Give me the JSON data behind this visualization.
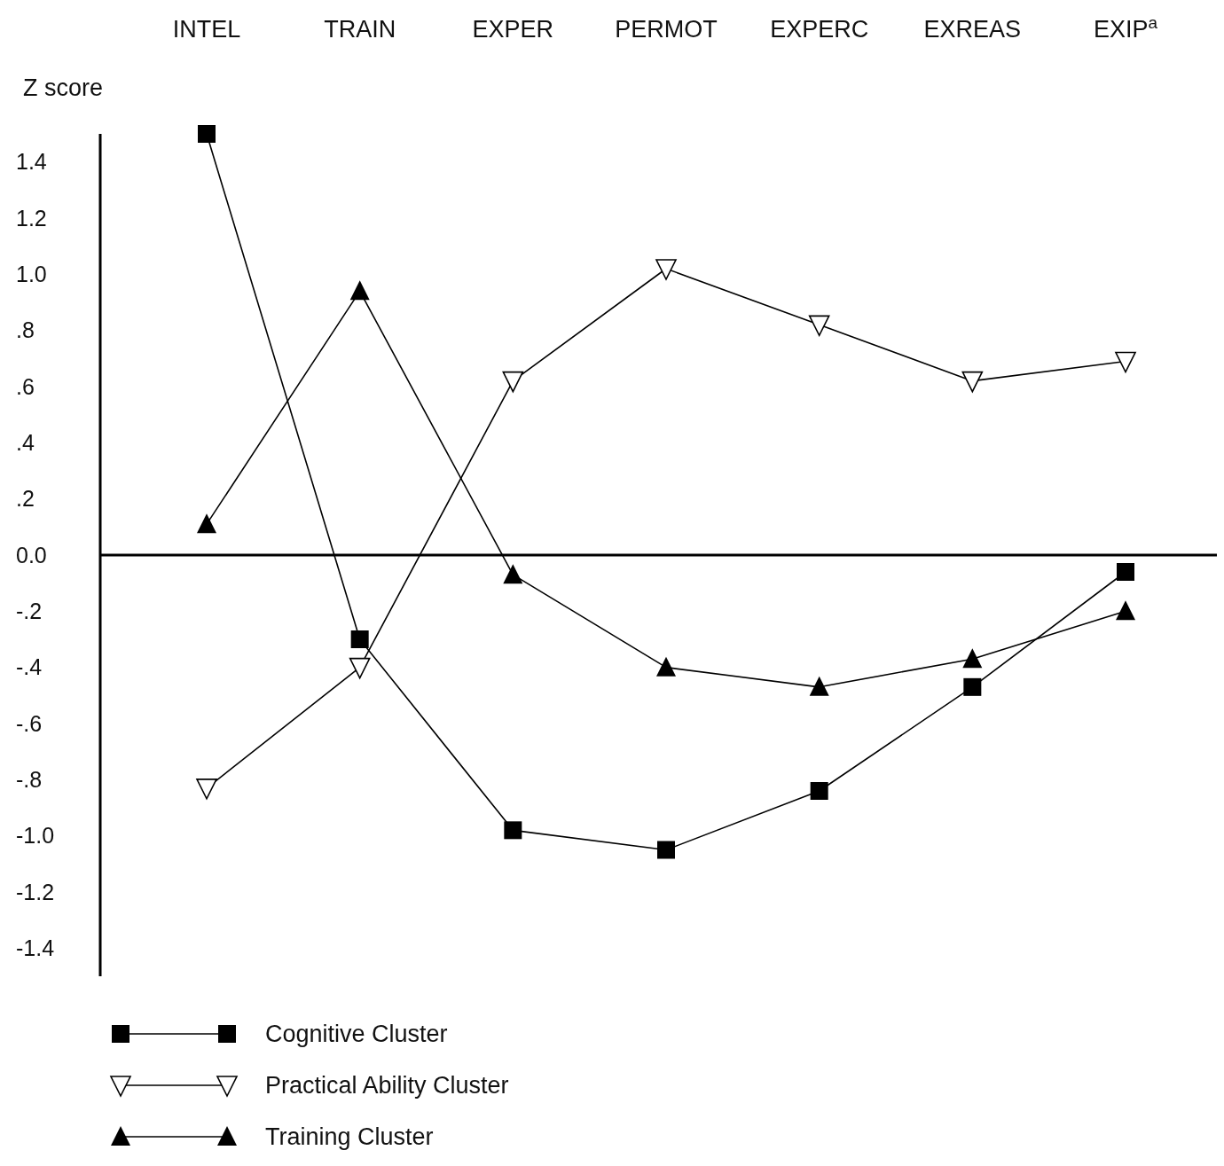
{
  "chart_data": {
    "type": "line",
    "ylabel": "Z score",
    "categories": [
      "INTEL",
      "TRAIN",
      "EXPER",
      "PERMOT",
      "EXPERC",
      "EXREAS",
      "EXIP$^{a}$"
    ],
    "series": [
      {
        "name": "Cognitive Cluster",
        "color": "#000000",
        "marker": "square",
        "values": [
          1.5,
          -0.3,
          -0.98,
          -1.05,
          -0.84,
          -0.47,
          -0.06
        ]
      },
      {
        "name": "Practical Ability Cluster",
        "color": "#000000",
        "marker": "triangle-down",
        "values": [
          -0.83,
          -0.4,
          0.62,
          1.02,
          0.82,
          0.62,
          0.69
        ]
      },
      {
        "name": "Training Cluster",
        "color": "#000000",
        "marker": "triangle",
        "values": [
          0.11,
          0.94,
          -0.07,
          -0.4,
          -0.47,
          -0.37,
          -0.2
        ]
      }
    ],
    "ylim": [
      -1.5,
      1.5
    ],
    "yticks": [
      1.4,
      1.2,
      {
        "value": 1,
        "label": "1.0"
      },
      {
        "value": 0.8,
        "label": ".8"
      },
      {
        "value": 0.6,
        "label": ".6"
      },
      {
        "value": 0.4,
        "label": ".4"
      },
      {
        "value": 0.2,
        "label": ".2"
      },
      {
        "value": 0,
        "label": "0.0"
      },
      {
        "value": -0.2,
        "label": "-.2"
      },
      {
        "value": -0.4,
        "label": "-.4"
      },
      {
        "value": -0.6,
        "label": "-.6"
      },
      {
        "value": -0.8,
        "label": "-.8"
      },
      {
        "value": -1,
        "label": "-1.0"
      },
      -1.2,
      -1.4
    ],
    "legend": "bottom",
    "line_style": "solid"
  }
}
